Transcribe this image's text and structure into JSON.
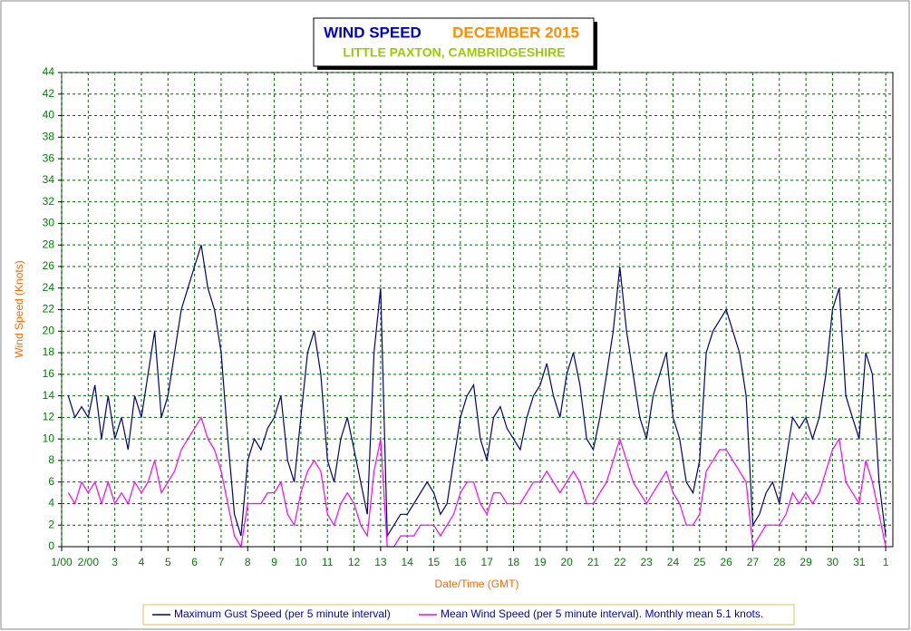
{
  "chart_data": {
    "type": "line",
    "title": "WIND SPEED",
    "title_period": "DECEMBER 2015",
    "subtitle": "LITTLE PAXTON, CAMBRIDGESHIRE",
    "x_label": "Date/Time (GMT)",
    "y_label": "Wind Speed (Knots)",
    "xlim": [
      0,
      31.27
    ],
    "ylim": [
      0,
      44
    ],
    "grid": true,
    "xticks": [
      {
        "value": 0,
        "label": "1/00"
      },
      {
        "value": 1,
        "label": "2/00"
      },
      {
        "value": 2,
        "label": "3"
      },
      {
        "value": 3,
        "label": "4"
      },
      {
        "value": 4,
        "label": "5"
      },
      {
        "value": 5,
        "label": "6"
      },
      {
        "value": 6,
        "label": "7"
      },
      {
        "value": 7,
        "label": "8"
      },
      {
        "value": 8,
        "label": "9"
      },
      {
        "value": 9,
        "label": "10"
      },
      {
        "value": 10,
        "label": "11"
      },
      {
        "value": 11,
        "label": "12"
      },
      {
        "value": 12,
        "label": "13"
      },
      {
        "value": 13,
        "label": "14"
      },
      {
        "value": 14,
        "label": "15"
      },
      {
        "value": 15,
        "label": "16"
      },
      {
        "value": 16,
        "label": "17"
      },
      {
        "value": 17,
        "label": "18"
      },
      {
        "value": 18,
        "label": "19"
      },
      {
        "value": 19,
        "label": "20"
      },
      {
        "value": 20,
        "label": "21"
      },
      {
        "value": 21,
        "label": "22"
      },
      {
        "value": 22,
        "label": "23"
      },
      {
        "value": 23,
        "label": "24"
      },
      {
        "value": 24,
        "label": "25"
      },
      {
        "value": 25,
        "label": "26"
      },
      {
        "value": 26,
        "label": "27"
      },
      {
        "value": 27,
        "label": "28"
      },
      {
        "value": 28,
        "label": "29"
      },
      {
        "value": 29,
        "label": "30"
      },
      {
        "value": 30,
        "label": "31"
      },
      {
        "value": 31,
        "label": "1"
      }
    ],
    "yticks": [
      0,
      2,
      4,
      6,
      8,
      10,
      12,
      14,
      16,
      18,
      20,
      22,
      24,
      26,
      28,
      30,
      32,
      34,
      36,
      38,
      40,
      42,
      44
    ],
    "x": [
      0,
      0.25,
      0.5,
      0.75,
      1,
      1.25,
      1.5,
      1.75,
      2,
      2.25,
      2.5,
      2.75,
      3,
      3.25,
      3.5,
      3.75,
      4,
      4.25,
      4.5,
      4.75,
      5,
      5.25,
      5.5,
      5.75,
      6,
      6.25,
      6.5,
      6.75,
      7,
      7.25,
      7.5,
      7.75,
      8,
      8.25,
      8.5,
      8.75,
      9,
      9.25,
      9.5,
      9.75,
      10,
      10.25,
      10.5,
      10.75,
      11,
      11.25,
      11.5,
      11.75,
      12,
      12.25,
      12.5,
      12.75,
      13,
      13.25,
      13.5,
      13.75,
      14,
      14.25,
      14.5,
      14.75,
      15,
      15.25,
      15.5,
      15.75,
      16,
      16.25,
      16.5,
      16.75,
      17,
      17.25,
      17.5,
      17.75,
      18,
      18.25,
      18.5,
      18.75,
      19,
      19.25,
      19.5,
      19.75,
      20,
      20.25,
      20.5,
      20.75,
      21,
      21.25,
      21.5,
      21.75,
      22,
      22.25,
      22.5,
      22.75,
      23,
      23.25,
      23.5,
      23.75,
      24,
      24.25,
      24.5,
      24.75,
      25,
      25.25,
      25.5,
      25.75,
      26,
      26.25,
      26.5,
      26.75,
      27,
      27.25,
      27.5,
      27.75,
      28,
      28.25,
      28.5,
      28.75,
      29,
      29.25,
      29.5,
      29.75,
      30,
      30.25,
      30.5,
      30.75,
      31
    ],
    "series": [
      {
        "name": "Maximum Gust Speed (per 5 minute interval)",
        "color": "#000080",
        "values": [
          null,
          14,
          12,
          13,
          12,
          15,
          10,
          14,
          10,
          12,
          9,
          14,
          12,
          16,
          20,
          12,
          14,
          18,
          22,
          24,
          26,
          28,
          24,
          22,
          18,
          10,
          3,
          1,
          8,
          10,
          9,
          11,
          12,
          14,
          8,
          6,
          12,
          18,
          20,
          16,
          8,
          6,
          10,
          12,
          9,
          6,
          3,
          18,
          24,
          1,
          2,
          3,
          3,
          4,
          5,
          6,
          5,
          3,
          4,
          8,
          12,
          14,
          15,
          10,
          8,
          12,
          13,
          11,
          10,
          9,
          12,
          14,
          15,
          17,
          14,
          12,
          16,
          18,
          15,
          10,
          9,
          12,
          16,
          20,
          26,
          20,
          16,
          12,
          10,
          14,
          16,
          18,
          12,
          10,
          6,
          5,
          8,
          18,
          20,
          21,
          22,
          20,
          18,
          14,
          2,
          3,
          5,
          6,
          4,
          8,
          12,
          11,
          12,
          10,
          12,
          16,
          22,
          24,
          14,
          12,
          10,
          18,
          16,
          6,
          1
        ]
      },
      {
        "name": "Mean Wind Speed (per 5 minute interval). Monthly mean 5.1 knots.",
        "color": "#ff00ff",
        "values": [
          null,
          5,
          4,
          6,
          5,
          6,
          4,
          6,
          4,
          5,
          4,
          6,
          5,
          6,
          8,
          5,
          6,
          7,
          9,
          10,
          11,
          12,
          10,
          9,
          7,
          4,
          1,
          0,
          4,
          4,
          4,
          5,
          5,
          6,
          3,
          2,
          5,
          7,
          8,
          7,
          3,
          2,
          4,
          5,
          4,
          2,
          1,
          7,
          10,
          0,
          0,
          1,
          1,
          1,
          2,
          2,
          2,
          1,
          2,
          3,
          5,
          6,
          6,
          4,
          3,
          5,
          5,
          4,
          4,
          4,
          5,
          6,
          6,
          7,
          6,
          5,
          6,
          7,
          6,
          4,
          4,
          5,
          6,
          8,
          10,
          8,
          6,
          5,
          4,
          5,
          6,
          7,
          5,
          4,
          2,
          2,
          3,
          7,
          8,
          9,
          9,
          8,
          7,
          6,
          0,
          1,
          2,
          2,
          2,
          3,
          5,
          4,
          5,
          4,
          5,
          7,
          9,
          10,
          6,
          5,
          4,
          8,
          6,
          3,
          0
        ]
      }
    ]
  }
}
